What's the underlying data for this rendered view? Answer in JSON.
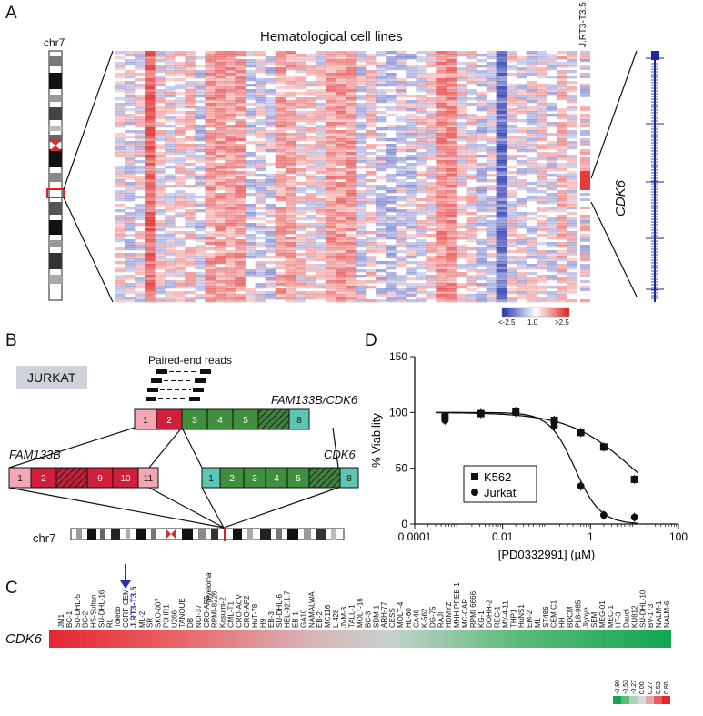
{
  "figure": {
    "panel_a": {
      "label": "A",
      "chromosome_label": "chr7",
      "title": "Hematological cell lines",
      "sample_label": "J.RT3-T3.5",
      "gene_label": "CDK6",
      "scale": {
        "low": "<-2.5",
        "mid": "1.0",
        "high": ">2.5",
        "colors": [
          "#2233aa",
          "#ffffff",
          "#e02020"
        ]
      }
    },
    "panel_b": {
      "label": "B",
      "cell_line": "JURKAT",
      "reads_label": "Paired-end reads",
      "fusion_label": "FAM133B/CDK6",
      "fusion_exons": [
        "1",
        "2",
        "3",
        "4",
        "5",
        "",
        "8"
      ],
      "fam133b_label": "FAM133B",
      "fam133b_exons": [
        "1",
        "2",
        "",
        "9",
        "10",
        "11"
      ],
      "cdk6_label": "CDK6",
      "cdk6_exons": [
        "1",
        "2",
        "3",
        "4",
        "5",
        "",
        "8"
      ],
      "chr_label": "chr7"
    },
    "panel_c": {
      "label": "C",
      "row_label": "CDK6",
      "highlight": "J.RT3-T3.5",
      "myeloma_note": "myeloma",
      "cell_lines": [
        "JM1",
        "BC-1",
        "SU-DHL-5",
        "BC-2",
        "HS-Sultan",
        "SU-DHL-16",
        "RL",
        "Toledo",
        "CCRF-CEM",
        "J.RT3-T3.5",
        "ML-2",
        "SR",
        "SKO-007",
        "P3HR1",
        "U266",
        "TANOUE",
        "DB",
        "NCI-37",
        "CRO-AP5",
        "RPMI-8226",
        "Kasumi-2",
        "CML-T1",
        "CRO-ACV",
        "CRO-AP2",
        "HuT-78",
        "H9",
        "EB-3",
        "SU-DHL-6",
        "HEL-92.1.7",
        "EB-1",
        "GA10",
        "NAMALWA",
        "EB-2",
        "MC116",
        "L-428",
        "JVM-3",
        "TALL-1",
        "MOLT-16",
        "BC-3",
        "SDM-1",
        "ARH-77",
        "CESS",
        "MOLT-4",
        "HL-60",
        "CA46",
        "K-562",
        "DG-75",
        "RAJI",
        "HDMYZ",
        "MHH-PREB-1",
        "MC-CAR",
        "RPMI 6666",
        "KG-1",
        "DOHH-2",
        "REC-1",
        "MV-4-11",
        "THP1",
        "HuNS1",
        "EM-2",
        "ML",
        "ST486",
        "CEM C1",
        "HH",
        "BDCM",
        "PL8-985",
        "Jiyoye",
        "SEM",
        "MEG-01",
        "MEC-1",
        "HT-3",
        "Daudi",
        "KU812",
        "SU-DHL-10",
        "BV-173",
        "NALM-1",
        "NALM-6"
      ],
      "legend_values": [
        "-0.80",
        "-0.53",
        "-0.27",
        "0.00",
        "0.27",
        "0.53",
        "0.80"
      ]
    }
  },
  "chart_data": {
    "type": "scatter",
    "panel_label": "D",
    "xlabel": "[PD0332991] (µM)",
    "ylabel": "% Viability",
    "xscale": "log",
    "xlim": [
      0.0001,
      100
    ],
    "ylim": [
      0,
      150
    ],
    "xticks": [
      "0.0001",
      "0.01",
      "1",
      "100"
    ],
    "yticks": [
      "0",
      "50",
      "100",
      "150"
    ],
    "legend_position": "middle-left",
    "series": [
      {
        "name": "K562",
        "marker": "square",
        "x": [
          0.00049,
          0.0032,
          0.02,
          0.15,
          0.6,
          2.0,
          10.0
        ],
        "y": [
          96,
          99,
          101,
          93,
          82,
          69,
          40
        ],
        "ic50": 9.0,
        "hill": 0.6
      },
      {
        "name": "Jurkat",
        "marker": "circle",
        "x": [
          0.00049,
          0.0032,
          0.02,
          0.15,
          0.6,
          2.0,
          10.0
        ],
        "y": [
          93,
          99,
          100,
          88,
          34,
          8,
          6
        ],
        "ic50": 0.44,
        "hill": 1.5
      }
    ]
  }
}
